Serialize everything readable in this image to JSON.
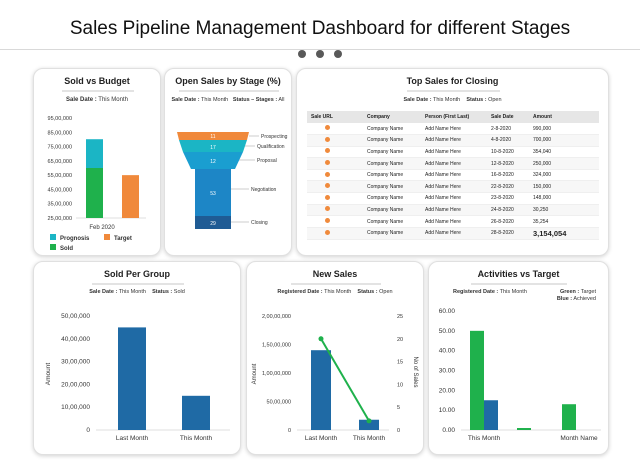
{
  "page": {
    "title": "Sales Pipeline Management Dashboard for different Stages"
  },
  "colors": {
    "teal": "#1bb5c5",
    "green": "#1fb14c",
    "orange": "#f0893b",
    "blue": "#1f6aa5"
  },
  "sold_vs_budget": {
    "title": "Sold vs Budget",
    "subtitle_label": "Sale Date :",
    "subtitle_value": "This Month",
    "legend": {
      "prognosis": "Prognosis",
      "target": "Target",
      "sold": "Sold"
    }
  },
  "open_sales": {
    "title": "Open Sales by Stage (%)",
    "sub1_label": "Sale Date :",
    "sub1_value": "This Month",
    "sub2_label": "Status – Stages :",
    "sub2_value": "All",
    "stages": [
      {
        "name": "Prospecting",
        "value": "11"
      },
      {
        "name": "Qualification",
        "value": "17"
      },
      {
        "name": "Proposal",
        "value": "12"
      },
      {
        "name": "Negotiation",
        "value": "53"
      },
      {
        "name": "Closing",
        "value": "29"
      }
    ]
  },
  "top_sales": {
    "title": "Top Sales for Closing",
    "sub1_label": "Sale Date :",
    "sub1_value": "This Month",
    "sub2_label": "Status :",
    "sub2_value": "Open",
    "columns": [
      "Sale URL",
      "Company",
      "Person (First Last)",
      "Sale Date",
      "Amount"
    ],
    "rows": [
      {
        "company": "Company Name",
        "person": "Add Name Here",
        "date": "2-8-2020",
        "amount": "990,000"
      },
      {
        "company": "Company Name",
        "person": "Add Name Here",
        "date": "4-8-2020",
        "amount": "700,000"
      },
      {
        "company": "Company Name",
        "person": "Add Name Here",
        "date": "10-8-2020",
        "amount": "354,040"
      },
      {
        "company": "Company Name",
        "person": "Add Name Here",
        "date": "12-8-2020",
        "amount": "250,000"
      },
      {
        "company": "Company Name",
        "person": "Add Name Here",
        "date": "16-8-2020",
        "amount": "324,000"
      },
      {
        "company": "Company Name",
        "person": "Add Name Here",
        "date": "22-8-2020",
        "amount": "150,000"
      },
      {
        "company": "Company Name",
        "person": "Add Name Here",
        "date": "23-8-2020",
        "amount": "148,000"
      },
      {
        "company": "Company Name",
        "person": "Add Name Here",
        "date": "24-8-2020",
        "amount": "30,250"
      },
      {
        "company": "Company Name",
        "person": "Add Name Here",
        "date": "26-8-2020",
        "amount": "35,254"
      },
      {
        "company": "Company Name",
        "person": "Add Name Here",
        "date": "28-8-2020",
        "amount": "3,154,054"
      }
    ]
  },
  "sold_per_group": {
    "title": "Sold Per Group",
    "sub1_label": "Sale Date :",
    "sub1_value": "This Month",
    "sub2_label": "Status :",
    "sub2_value": "Sold"
  },
  "new_sales": {
    "title": "New Sales",
    "sub1_label": "Registered",
    "sub1_key": "Date :",
    "sub1_value": "This Month",
    "sub2_label": "Status :",
    "sub2_value": "Open"
  },
  "activities": {
    "title": "Activities vs Target",
    "sub1_label": "Registered",
    "sub1_key": "Date :",
    "sub1_value": "This Month",
    "sub2_label": "Green :",
    "sub2_value": "Target",
    "sub3_label": "Blue :",
    "sub3_value": "Achieved"
  },
  "chart_data": [
    {
      "type": "bar",
      "title": "Sold vs Budget",
      "categories": [
        "Feb 2020"
      ],
      "series": [
        {
          "name": "Prognosis",
          "values": [
            6500000
          ],
          "base": 6000000
        },
        {
          "name": "Sold",
          "values": [
            3500000
          ],
          "base": 2500000
        },
        {
          "name": "Target",
          "values": [
            3000000
          ],
          "base": 2500000
        }
      ],
      "yticks": [
        "95,00,000",
        "85,00,000",
        "75,00,000",
        "65,00,000",
        "55,00,000",
        "45,00,000",
        "35,00,000",
        "25,00,000"
      ],
      "ylim": [
        2500000,
        9500000
      ]
    },
    {
      "type": "bar",
      "title": "Sold Per Group",
      "categories": [
        "Last Month",
        "This Month"
      ],
      "values": [
        4500000,
        1500000
      ],
      "ylabel": "Amount",
      "yticks": [
        "50,00,000",
        "40,00,000",
        "30,00,000",
        "20,00,000",
        "10,00,000",
        "0"
      ],
      "ylim": [
        0,
        5000000
      ]
    },
    {
      "type": "bar",
      "title": "New Sales",
      "categories": [
        "Last Month",
        "This Month"
      ],
      "values": [
        14000000,
        1800000
      ],
      "line_values": [
        20,
        2
      ],
      "ylabel": "Amount",
      "y2label": "No of Sales",
      "yticks": [
        "2,00,00,000",
        "1,50,00,000",
        "1,00,00,000",
        "50,00,000",
        "0"
      ],
      "y2ticks": [
        "25",
        "20",
        "15",
        "10",
        "5",
        "0"
      ],
      "ylim": [
        0,
        20000000
      ],
      "y2lim": [
        0,
        25
      ]
    },
    {
      "type": "bar",
      "title": "Activities vs Target",
      "categories": [
        "This Month",
        "",
        "Month Name"
      ],
      "series": [
        {
          "name": "Target",
          "values": [
            50,
            1,
            13
          ]
        },
        {
          "name": "Achieved",
          "values": [
            15,
            0,
            0
          ]
        }
      ],
      "yticks": [
        "60.00",
        "50.00",
        "40.00",
        "30.00",
        "20.00",
        "10.00",
        "0.00"
      ],
      "ylim": [
        0,
        60
      ]
    }
  ]
}
